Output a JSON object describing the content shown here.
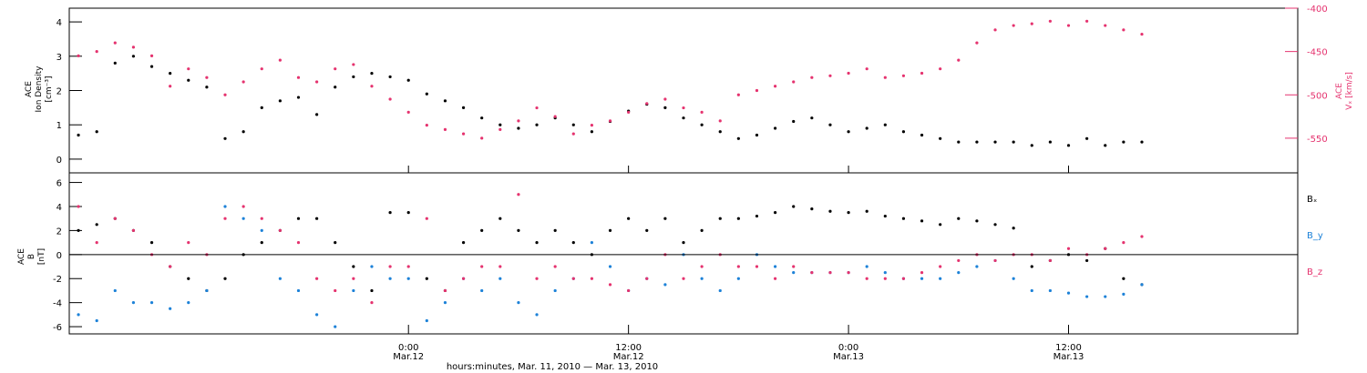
{
  "chart_data": [
    {
      "type": "scatter",
      "panel": "top",
      "ylabel": [
        "ACE",
        "Ion Density",
        "[cm⁻³]"
      ],
      "ylim": [
        -0.4,
        4.4
      ],
      "yticks": [
        0,
        1,
        2,
        3,
        4
      ],
      "y2label": [
        "ACE",
        "Vₓ [km/s]"
      ],
      "y2lim": [
        -400,
        -590
      ],
      "y2ticks": [
        -400,
        -450,
        -500,
        -550
      ],
      "y2ticklabels": [
        "-400",
        "-450",
        "-500",
        "-550"
      ],
      "series": [
        {
          "name": "Ion Density",
          "axis": "left",
          "color": "#000000",
          "x": [
            0,
            1,
            2,
            3,
            4,
            5,
            6,
            7,
            8,
            9,
            10,
            11,
            12,
            13,
            14,
            15,
            16,
            17,
            18,
            19,
            20,
            21,
            22,
            23,
            24,
            25,
            26,
            27,
            28,
            29,
            30,
            31,
            32,
            33,
            34,
            35,
            36,
            37,
            38,
            39,
            40,
            41,
            42,
            43,
            44,
            45,
            46,
            47,
            48,
            49,
            50,
            51,
            52,
            53,
            54,
            55,
            56,
            57,
            58
          ],
          "y": [
            0.7,
            0.8,
            2.8,
            3.0,
            2.7,
            2.5,
            2.3,
            2.1,
            0.6,
            0.8,
            1.5,
            1.7,
            1.8,
            1.3,
            2.1,
            2.4,
            2.5,
            2.4,
            2.3,
            1.9,
            1.7,
            1.5,
            1.2,
            1.0,
            0.9,
            1.0,
            1.2,
            1.0,
            0.8,
            1.1,
            1.4,
            1.6,
            1.5,
            1.2,
            1.0,
            0.8,
            0.6,
            0.7,
            0.9,
            1.1,
            1.2,
            1.0,
            0.8,
            0.9,
            1.0,
            0.8,
            0.7,
            0.6,
            0.5,
            0.5,
            0.5,
            0.5,
            0.4,
            0.5,
            0.4,
            0.6,
            0.4,
            0.5,
            0.5
          ]
        },
        {
          "name": "Vx",
          "axis": "right",
          "color": "#e5336f",
          "x": [
            0,
            1,
            2,
            3,
            4,
            5,
            6,
            7,
            8,
            9,
            10,
            11,
            12,
            13,
            14,
            15,
            16,
            17,
            18,
            19,
            20,
            21,
            22,
            23,
            24,
            25,
            26,
            27,
            28,
            29,
            30,
            31,
            32,
            33,
            34,
            35,
            36,
            37,
            38,
            39,
            40,
            41,
            42,
            43,
            44,
            45,
            46,
            47,
            48,
            49,
            50,
            51,
            52,
            53,
            54,
            55,
            56,
            57,
            58
          ],
          "y": [
            -455,
            -450,
            -440,
            -445,
            -455,
            -490,
            -470,
            -480,
            -500,
            -485,
            -470,
            -460,
            -480,
            -485,
            -470,
            -465,
            -490,
            -505,
            -520,
            -535,
            -540,
            -545,
            -550,
            -540,
            -530,
            -515,
            -525,
            -545,
            -535,
            -530,
            -520,
            -510,
            -505,
            -515,
            -520,
            -530,
            -500,
            -495,
            -490,
            -485,
            -480,
            -478,
            -475,
            -470,
            -480,
            -478,
            -475,
            -470,
            -460,
            -440,
            -425,
            -420,
            -418,
            -415,
            -420,
            -415,
            -420,
            -425,
            -430
          ]
        }
      ]
    },
    {
      "type": "scatter",
      "panel": "bottom",
      "ylabel": [
        "ACE",
        "B",
        "[nT]"
      ],
      "ylim": [
        -6.6,
        6.8
      ],
      "yticks": [
        -6,
        -4,
        -2,
        0,
        2,
        4,
        6
      ],
      "legend_position": "right",
      "series": [
        {
          "name": "Bₓ",
          "color": "#000000",
          "x": [
            0,
            1,
            2,
            3,
            4,
            5,
            6,
            7,
            8,
            9,
            10,
            11,
            12,
            13,
            14,
            15,
            16,
            17,
            18,
            19,
            20,
            21,
            22,
            23,
            24,
            25,
            26,
            27,
            28,
            29,
            30,
            31,
            32,
            33,
            34,
            35,
            36,
            37,
            38,
            39,
            40,
            41,
            42,
            43,
            44,
            45,
            46,
            47,
            48,
            49,
            50,
            51,
            52,
            53,
            54,
            55,
            56,
            57,
            58
          ],
          "y": [
            2,
            2.5,
            3,
            2,
            1,
            -1,
            -2,
            -3,
            -2,
            0,
            1,
            2,
            3,
            3,
            1,
            -1,
            -3,
            3.5,
            3.5,
            -2,
            -3,
            1,
            2,
            3,
            2,
            1,
            2,
            1,
            0,
            2,
            3,
            2,
            3,
            1,
            2,
            3,
            3,
            3.2,
            3.5,
            4,
            3.8,
            3.6,
            3.5,
            3.6,
            3.2,
            3,
            2.8,
            2.5,
            3,
            2.8,
            2.5,
            2.2,
            -1,
            -0.5,
            0,
            -0.5,
            0.5,
            -2,
            -2.5
          ]
        },
        {
          "name": "B_y",
          "color": "#1d82d8",
          "x": [
            0,
            1,
            2,
            3,
            4,
            5,
            6,
            7,
            8,
            9,
            10,
            11,
            12,
            13,
            14,
            15,
            16,
            17,
            18,
            19,
            20,
            21,
            22,
            23,
            24,
            25,
            26,
            27,
            28,
            29,
            30,
            31,
            32,
            33,
            34,
            35,
            36,
            37,
            38,
            39,
            40,
            41,
            42,
            43,
            44,
            45,
            46,
            47,
            48,
            49,
            50,
            51,
            52,
            53,
            54,
            55,
            56,
            57,
            58
          ],
          "y": [
            -5,
            -5.5,
            -3,
            -4,
            -4,
            -4.5,
            -4,
            -3,
            4,
            3,
            2,
            -2,
            -3,
            -5,
            -6,
            -3,
            -1,
            -2,
            -2,
            -5.5,
            -4,
            -2,
            -3,
            -2,
            -4,
            -5,
            -3,
            -2,
            1,
            -1,
            -3,
            -2,
            -2.5,
            0,
            -2,
            -3,
            -2,
            0,
            -1,
            -1.5,
            -1.5,
            -1.5,
            -1.5,
            -1,
            -1.5,
            -2,
            -2,
            -2,
            -1.5,
            -1,
            -0.5,
            -2,
            -3,
            -3,
            -3.2,
            -3.5,
            -3.5,
            -3.3,
            -2.5
          ]
        },
        {
          "name": "B_z",
          "color": "#e5336f",
          "x": [
            0,
            1,
            2,
            3,
            4,
            5,
            6,
            7,
            8,
            9,
            10,
            11,
            12,
            13,
            14,
            15,
            16,
            17,
            18,
            19,
            20,
            21,
            22,
            23,
            24,
            25,
            26,
            27,
            28,
            29,
            30,
            31,
            32,
            33,
            34,
            35,
            36,
            37,
            38,
            39,
            40,
            41,
            42,
            43,
            44,
            45,
            46,
            47,
            48,
            49,
            50,
            51,
            52,
            53,
            54,
            55,
            56,
            57,
            58
          ],
          "y": [
            4,
            1,
            3,
            2,
            0,
            -1,
            1,
            0,
            3,
            4,
            3,
            2,
            1,
            -2,
            -3,
            -2,
            -4,
            -1,
            -1,
            3,
            -3,
            -2,
            -1,
            -1,
            5,
            -2,
            -1,
            -2,
            -2,
            -2.5,
            -3,
            -2,
            0,
            -2,
            -1,
            0,
            -1,
            -1,
            -2,
            -1,
            -1.5,
            -1.5,
            -1.5,
            -2,
            -2,
            -2,
            -1.5,
            -1,
            -0.5,
            0,
            -0.5,
            0,
            0,
            -0.5,
            0.5,
            0,
            0.5,
            1,
            1.5
          ]
        }
      ]
    }
  ],
  "time_axis": {
    "ticks": [
      {
        "t": 18,
        "line1": "0:00",
        "line2": "Mar.12"
      },
      {
        "t": 30,
        "line1": "12:00",
        "line2": "Mar.12"
      },
      {
        "t": 42,
        "line1": "0:00",
        "line2": "Mar.13"
      },
      {
        "t": 54,
        "line1": "12:00",
        "line2": "Mar.13"
      }
    ],
    "xlim": [
      -0.5,
      66.5
    ],
    "xlabel": "hours:minutes, Mar. 11, 2010 — Mar. 13, 2010"
  },
  "legend": [
    {
      "label": "Bₓ",
      "color": "#000000"
    },
    {
      "label": "B_y",
      "color": "#1d82d8"
    },
    {
      "label": "B_z",
      "color": "#e5336f"
    }
  ]
}
